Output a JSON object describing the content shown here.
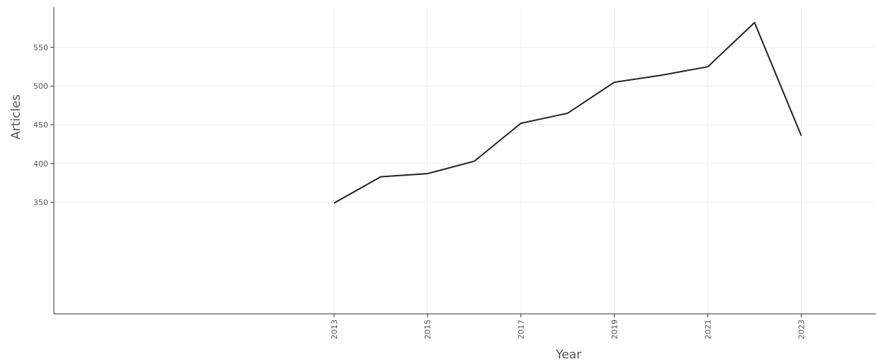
{
  "chart_data": {
    "type": "line",
    "title": "",
    "xlabel": "Year",
    "ylabel": "Articles",
    "x": [
      2013,
      2014,
      2015,
      2016,
      2017,
      2018,
      2019,
      2020,
      2021,
      2022,
      2023
    ],
    "series": [
      {
        "values": [
          349,
          383,
          387,
          403,
          452,
          465,
          505,
          514,
          525,
          582,
          436
        ]
      }
    ],
    "xticks": [
      "2013",
      "2015",
      "2017",
      "2019",
      "2021",
      "2023"
    ],
    "yticks": [
      "350",
      "400",
      "450",
      "500",
      "550"
    ],
    "xlim": [
      2007,
      2024.6
    ],
    "ylim": [
      206,
      602
    ],
    "grid": true,
    "legend": "none",
    "line_color": "#222222",
    "grid_color": "#eeeeee",
    "axis_color": "#333333"
  }
}
